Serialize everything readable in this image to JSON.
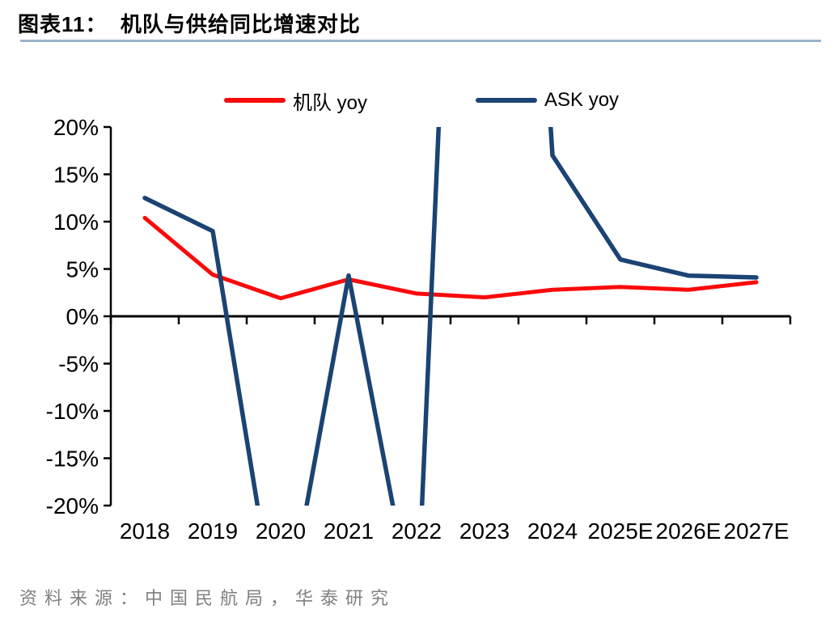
{
  "title": "图表11：  机队与供给同比增速对比",
  "source": "资料来源：中国民航局，华泰研究",
  "legend": {
    "items": [
      {
        "label": "机队 yoy",
        "color": "#FA0A0A"
      },
      {
        "label": "ASK yoy",
        "color": "#1B4373"
      }
    ]
  },
  "chart_data": {
    "type": "line",
    "title": "机队与供给同比增速对比",
    "categories": [
      "2018",
      "2019",
      "2020",
      "2021",
      "2022",
      "2023",
      "2024",
      "2025E",
      "2026E",
      "2027E"
    ],
    "series": [
      {
        "name": "机队 yoy",
        "color": "#FA0A0A",
        "line_width": 5,
        "values": [
          10.4,
          4.4,
          1.9,
          3.9,
          2.4,
          2.0,
          2.8,
          3.1,
          2.8,
          3.6
        ]
      },
      {
        "name": "ASK yoy",
        "color": "#1B4373",
        "line_width": 5.5,
        "values": [
          12.5,
          9.0,
          -35.0,
          4.3,
          -33.0,
          130.0,
          17.0,
          6.0,
          4.3,
          4.1
        ]
      }
    ],
    "ylim": [
      -20,
      20
    ],
    "ytick_values": [
      20,
      15,
      10,
      5,
      0,
      -5,
      -10,
      -15,
      -20
    ],
    "ytick_labels": [
      "20%",
      "15%",
      "10%",
      "5%",
      "0%",
      "-5%",
      "-10%",
      "-15%",
      "-20%"
    ],
    "xlabel": "",
    "ylabel": "",
    "grid": false,
    "legend_position": "top",
    "clip_to_ylim": true,
    "x_axis_at_zero": true
  },
  "colors": {
    "background": "#FFFFFF",
    "divider": "#9AB2CC",
    "axis": "#000000",
    "source_text": "#808080"
  }
}
